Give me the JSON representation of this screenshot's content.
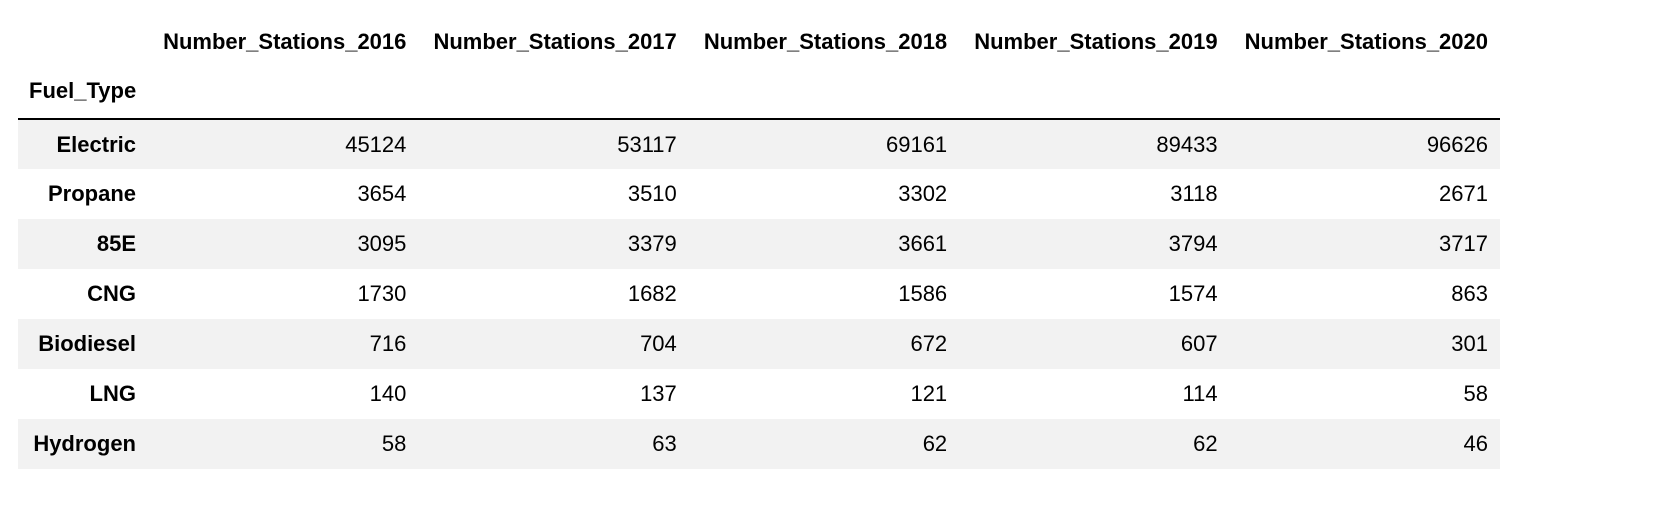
{
  "table": {
    "columns": [
      "Number_Stations_2016",
      "Number_Stations_2017",
      "Number_Stations_2018",
      "Number_Stations_2019",
      "Number_Stations_2020"
    ],
    "index_name": "Fuel_Type",
    "rows": [
      {
        "label": "Electric",
        "values": [
          "45124",
          "53117",
          "69161",
          "89433",
          "96626"
        ]
      },
      {
        "label": "Propane",
        "values": [
          "3654",
          "3510",
          "3302",
          "3118",
          "2671"
        ]
      },
      {
        "label": "85E",
        "values": [
          "3095",
          "3379",
          "3661",
          "3794",
          "3717"
        ]
      },
      {
        "label": "CNG",
        "values": [
          "1730",
          "1682",
          "1586",
          "1574",
          "863"
        ]
      },
      {
        "label": "Biodiesel",
        "values": [
          "716",
          "704",
          "672",
          "607",
          "301"
        ]
      },
      {
        "label": "LNG",
        "values": [
          "140",
          "137",
          "121",
          "114",
          "58"
        ]
      },
      {
        "label": "Hydrogen",
        "values": [
          "58",
          "63",
          "62",
          "62",
          "46"
        ]
      }
    ]
  }
}
